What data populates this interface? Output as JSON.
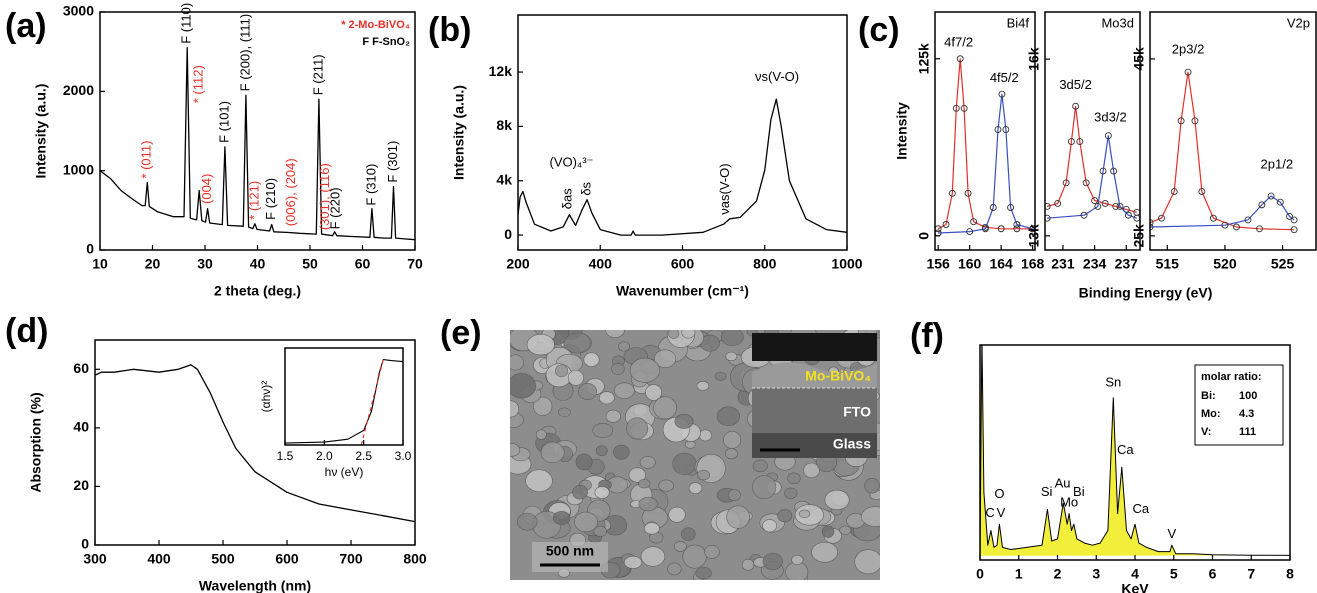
{
  "chart_data": [
    {
      "type": "line",
      "panel_label": "(a)",
      "xlabel": "2 theta (deg.)",
      "ylabel": "Intensity (a.u.)",
      "xlim": [
        10,
        70
      ],
      "xticks": [
        10,
        20,
        30,
        40,
        50,
        60,
        70
      ],
      "ylim": [
        0,
        3000
      ],
      "yticks": [
        0,
        1000,
        2000,
        3000
      ],
      "series": [
        {
          "color": "#000000",
          "x": [
            10,
            12,
            14,
            16,
            18,
            18.6,
            19,
            19.4,
            21,
            24,
            26,
            26.6,
            27.2,
            28.4,
            28.9,
            29.4,
            30.1,
            30.5,
            30.9,
            33.3,
            33.8,
            34.3,
            37.3,
            37.8,
            38.3,
            39.1,
            39.5,
            39.9,
            42.3,
            42.7,
            43.1,
            46,
            48,
            51.2,
            51.7,
            52.2,
            54.3,
            54.7,
            55.1,
            58,
            61.4,
            61.8,
            62.2,
            64,
            65.5,
            65.9,
            66.3,
            68,
            70
          ],
          "values": [
            1000,
            900,
            750,
            650,
            560,
            560,
            850,
            550,
            480,
            420,
            420,
            2550,
            400,
            380,
            750,
            370,
            350,
            520,
            340,
            320,
            1300,
            310,
            300,
            1950,
            290,
            270,
            330,
            260,
            240,
            320,
            230,
            220,
            210,
            200,
            1900,
            200,
            180,
            230,
            180,
            170,
            160,
            520,
            160,
            150,
            150,
            800,
            150,
            140,
            130
          ]
        }
      ],
      "legend_texts": [
        {
          "text": "* 2-Mo-BiVO₄",
          "color": "#e8302a"
        },
        {
          "text": "F  F-SnO₂",
          "color": "#000000"
        }
      ],
      "annotations": [
        {
          "text": "* (011)",
          "x": 19,
          "y": 900,
          "color": "#e8302a",
          "vertical": true
        },
        {
          "text": "F (110)",
          "x": 26.6,
          "y": 2600,
          "color": "#000000",
          "vertical": true
        },
        {
          "text": "* (112)",
          "x": 28.9,
          "y": 1850,
          "color": "#e8302a",
          "vertical": true
        },
        {
          "text": "(004)",
          "x": 30.5,
          "y": 580,
          "color": "#e8302a",
          "vertical": true
        },
        {
          "text": "F (101)",
          "x": 33.8,
          "y": 1350,
          "color": "#000000",
          "vertical": true
        },
        {
          "text": "F (200), (111)",
          "x": 37.8,
          "y": 2000,
          "color": "#000000",
          "vertical": true
        },
        {
          "text": "* (121)",
          "x": 39.5,
          "y": 380,
          "color": "#e8302a",
          "vertical": true
        },
        {
          "text": "F (210)",
          "x": 42.7,
          "y": 380,
          "color": "#000000",
          "vertical": true
        },
        {
          "text": "(006), (204)",
          "x": 46.5,
          "y": 300,
          "color": "#e8302a",
          "vertical": true
        },
        {
          "text": "F (211)",
          "x": 51.7,
          "y": 1950,
          "color": "#000000",
          "vertical": true
        },
        {
          "text": "(301), (116)",
          "x": 53,
          "y": 250,
          "color": "#e8302a",
          "vertical": true
        },
        {
          "text": "F (220)",
          "x": 55,
          "y": 260,
          "color": "#000000",
          "vertical": true
        },
        {
          "text": "F (310)",
          "x": 61.8,
          "y": 560,
          "color": "#000000",
          "vertical": true
        },
        {
          "text": "F (301)",
          "x": 65.9,
          "y": 850,
          "color": "#000000",
          "vertical": true
        }
      ]
    },
    {
      "type": "line",
      "panel_label": "(b)",
      "xlabel": "Wavenumber (cm⁻¹)",
      "ylabel": "Intensity (a.u.)",
      "xlim": [
        200,
        1000
      ],
      "xticks": [
        200,
        400,
        600,
        800,
        1000
      ],
      "ylim": [
        -1100,
        16200
      ],
      "yticks": [
        0,
        {
          "value": 4000,
          "label": "4k"
        },
        {
          "value": 8000,
          "label": "8k"
        },
        {
          "value": 12000,
          "label": "12k"
        }
      ],
      "series": [
        {
          "color": "#000000",
          "x": [
            200,
            205,
            212,
            220,
            240,
            280,
            310,
            325,
            340,
            355,
            368,
            380,
            400,
            450,
            475,
            480,
            485,
            550,
            650,
            700,
            715,
            740,
            780,
            800,
            815,
            828,
            840,
            860,
            900,
            950,
            1000
          ],
          "values": [
            1500,
            2800,
            3200,
            2400,
            800,
            300,
            600,
            1500,
            700,
            1800,
            2600,
            1600,
            400,
            0,
            0,
            300,
            0,
            0,
            200,
            800,
            1200,
            1300,
            2500,
            4800,
            8500,
            10000,
            8000,
            4000,
            1200,
            400,
            200
          ]
        }
      ],
      "annotations": [
        {
          "text": "νs(V-O)",
          "x": 830,
          "y": 11600
        },
        {
          "text": "(VO)₄³⁻",
          "x": 330,
          "y": 5300
        },
        {
          "text": "δas",
          "x": 322,
          "y": 1900,
          "vertical": true
        },
        {
          "text": "δs",
          "x": 368,
          "y": 2900,
          "vertical": true
        },
        {
          "text": "νas(V-O)",
          "x": 705,
          "y": 1500,
          "vertical": true
        }
      ]
    },
    {
      "type": "xps",
      "panel_label": "(c)",
      "xlabel": "Binding Energy (eV)",
      "ylabel": "Intensity",
      "subplots": [
        {
          "label": "Bi4f",
          "xlim": [
            155.6,
            168.3
          ],
          "xticks": [
            156,
            160,
            164,
            168
          ],
          "ylim": [
            -10000,
            158000
          ],
          "yticks": [
            0,
            {
              "value": 125000,
              "label": "125k"
            }
          ],
          "series": [
            {
              "color": "#e0302a",
              "x": [
                156,
                157,
                157.8,
                158.3,
                158.8,
                159.3,
                159.8,
                160.5,
                162,
                164,
                166,
                168
              ],
              "values": [
                5000,
                8000,
                30000,
                90000,
                125000,
                90000,
                30000,
                10000,
                6000,
                5000,
                5000,
                5000
              ]
            },
            {
              "color": "#3a4fbf",
              "x": [
                156,
                160,
                162,
                163,
                163.6,
                164.1,
                164.6,
                165.2,
                166,
                168
              ],
              "values": [
                2000,
                3000,
                5000,
                20000,
                75000,
                100000,
                75000,
                20000,
                8000,
                5000
              ]
            }
          ],
          "annotations": [
            {
              "text": "4f7/2",
              "x": 158.6,
              "y": 136000
            },
            {
              "text": "4f5/2",
              "x": 164.4,
              "y": 111000
            }
          ]
        },
        {
          "label": "Mo3d",
          "xlim": [
            229.3,
            238.3
          ],
          "xticks": [
            231,
            234,
            237
          ],
          "ylim": [
            12760,
            16800
          ],
          "yticks": [
            {
              "value": 13000,
              "label": "13k"
            },
            {
              "value": 16000,
              "label": "16k"
            }
          ],
          "series": [
            {
              "color": "#e0302a",
              "x": [
                229.5,
                230.5,
                231.3,
                231.8,
                232.2,
                232.6,
                233.2,
                234,
                235,
                236,
                237,
                238
              ],
              "values": [
                13500,
                13550,
                13900,
                14600,
                15200,
                14600,
                13900,
                13600,
                13550,
                13500,
                13450,
                13400
              ]
            },
            {
              "color": "#3a4fbf",
              "x": [
                229.5,
                233,
                234.3,
                234.8,
                235.3,
                235.8,
                236.4,
                237.2,
                238
              ],
              "values": [
                13300,
                13350,
                13500,
                14100,
                14700,
                14100,
                13500,
                13350,
                13300
              ]
            }
          ],
          "annotations": [
            {
              "text": "3d5/2",
              "x": 232.2,
              "y": 15550
            },
            {
              "text": "3d3/2",
              "x": 235.5,
              "y": 15000
            }
          ]
        },
        {
          "label": "V2p",
          "xlim": [
            513.5,
            527.9
          ],
          "xticks": [
            515,
            520,
            525
          ],
          "ylim": [
            23400,
            50300
          ],
          "yticks": [
            {
              "value": 25000,
              "label": "25k"
            },
            {
              "value": 45000,
              "label": "45k"
            }
          ],
          "series": [
            {
              "color": "#e0302a",
              "x": [
                513.5,
                514.5,
                515.6,
                516.2,
                516.8,
                517.4,
                518,
                519,
                521,
                523,
                526
              ],
              "values": [
                26500,
                27000,
                30000,
                38000,
                43500,
                38000,
                30000,
                27000,
                26000,
                25800,
                25700
              ]
            },
            {
              "color": "#3a4fbf",
              "x": [
                513.5,
                520,
                522,
                523.2,
                524,
                524.8,
                525.6,
                526
              ],
              "values": [
                26000,
                26200,
                26800,
                28500,
                29500,
                28800,
                27200,
                26800
              ]
            }
          ],
          "annotations": [
            {
              "text": "2p3/2",
              "x": 516.8,
              "y": 46000
            },
            {
              "text": "2p1/2",
              "x": 524.5,
              "y": 33000
            }
          ]
        }
      ]
    },
    {
      "type": "line",
      "panel_label": "(d)",
      "xlabel": "Wavelength (nm)",
      "ylabel": "Absorption (%)",
      "xlim": [
        300,
        800
      ],
      "xticks": [
        300,
        400,
        500,
        600,
        700,
        800
      ],
      "ylim": [
        0,
        70
      ],
      "yticks": [
        0,
        20,
        40,
        60
      ],
      "series": [
        {
          "color": "#000000",
          "x": [
            300,
            310,
            330,
            360,
            400,
            430,
            450,
            460,
            480,
            500,
            520,
            550,
            600,
            650,
            700,
            750,
            800
          ],
          "values": [
            58,
            59,
            59,
            60,
            59,
            60,
            61.5,
            60,
            52,
            42,
            33,
            25,
            18,
            14,
            12,
            10,
            8
          ]
        }
      ],
      "inset": {
        "xlabel": "hν (eV)",
        "ylabel": "(αhν)²",
        "xlim": [
          1.5,
          3.0
        ],
        "xticks": [
          1.5,
          {
            "value": 2.0,
            "label": "2.0"
          },
          2.5,
          {
            "value": 3.0,
            "label": "3.0"
          }
        ],
        "ylim": [
          0,
          1
        ],
        "series": [
          {
            "color": "#000000",
            "x": [
              1.5,
              2.0,
              2.3,
              2.5,
              2.6,
              2.7,
              2.75,
              2.85,
              3.0
            ],
            "values": [
              0.02,
              0.03,
              0.06,
              0.15,
              0.35,
              0.75,
              0.88,
              0.87,
              0.86
            ]
          },
          {
            "color": "#e0302a",
            "dashed": true,
            "x": [
              2.47,
              2.75
            ],
            "values": [
              0,
              0.88
            ]
          }
        ]
      }
    },
    {
      "type": "image",
      "panel_label": "(e)",
      "scale_bar_label": "500 nm",
      "inset_labels": [
        {
          "text": "Mo-BiVO₄",
          "color": "#f2e21e"
        },
        {
          "text": "FTO",
          "color": "#ffffff"
        },
        {
          "text": "Glass",
          "color": "#ffffff"
        }
      ]
    },
    {
      "type": "area",
      "panel_label": "(f)",
      "xlabel": "KeV",
      "xlim": [
        0,
        8
      ],
      "xticks": [
        0,
        1,
        2,
        3,
        4,
        5,
        6,
        7,
        8
      ],
      "ylim": [
        -0.02,
        1
      ],
      "series": [
        {
          "color": "#000000",
          "fill": "#f2ef3a",
          "x": [
            0,
            0.05,
            0.1,
            0.2,
            0.28,
            0.36,
            0.44,
            0.5,
            0.58,
            0.8,
            1.2,
            1.6,
            1.74,
            1.85,
            2.0,
            2.15,
            2.25,
            2.3,
            2.36,
            2.42,
            2.5,
            2.7,
            2.9,
            3.1,
            3.3,
            3.44,
            3.55,
            3.66,
            3.78,
            3.9,
            4.0,
            4.1,
            4.3,
            4.6,
            4.9,
            4.95,
            5.05,
            5.5,
            6,
            7,
            8
          ],
          "values": [
            0,
            1.05,
            0.3,
            0.05,
            0.12,
            0.04,
            0.05,
            0.15,
            0.04,
            0.03,
            0.04,
            0.05,
            0.22,
            0.07,
            0.08,
            0.25,
            0.15,
            0.2,
            0.12,
            0.15,
            0.08,
            0.06,
            0.05,
            0.06,
            0.12,
            0.75,
            0.2,
            0.42,
            0.12,
            0.08,
            0.15,
            0.06,
            0.04,
            0.02,
            0.02,
            0.05,
            0.01,
            0.01,
            0.005,
            0.003,
            0.002
          ]
        }
      ],
      "annotations": [
        {
          "text": "C",
          "x": 0.26,
          "y": 0.2
        },
        {
          "text": "V",
          "x": 0.54,
          "y": 0.2
        },
        {
          "text": "O",
          "x": 0.5,
          "y": 0.29
        },
        {
          "text": "Si",
          "x": 1.72,
          "y": 0.3
        },
        {
          "text": "Au",
          "x": 2.13,
          "y": 0.34
        },
        {
          "text": "Mo",
          "x": 2.3,
          "y": 0.25
        },
        {
          "text": "Bi",
          "x": 2.55,
          "y": 0.3
        },
        {
          "text": "Sn",
          "x": 3.44,
          "y": 0.82
        },
        {
          "text": "Ca",
          "x": 3.75,
          "y": 0.5
        },
        {
          "text": "Ca",
          "x": 4.15,
          "y": 0.22
        },
        {
          "text": "V",
          "x": 4.95,
          "y": 0.1
        }
      ],
      "legend_box": {
        "title": "molar ratio:",
        "rows": [
          [
            "Bi:",
            100
          ],
          [
            "Mo:",
            4.3
          ],
          [
            "V:",
            111
          ]
        ]
      }
    }
  ]
}
